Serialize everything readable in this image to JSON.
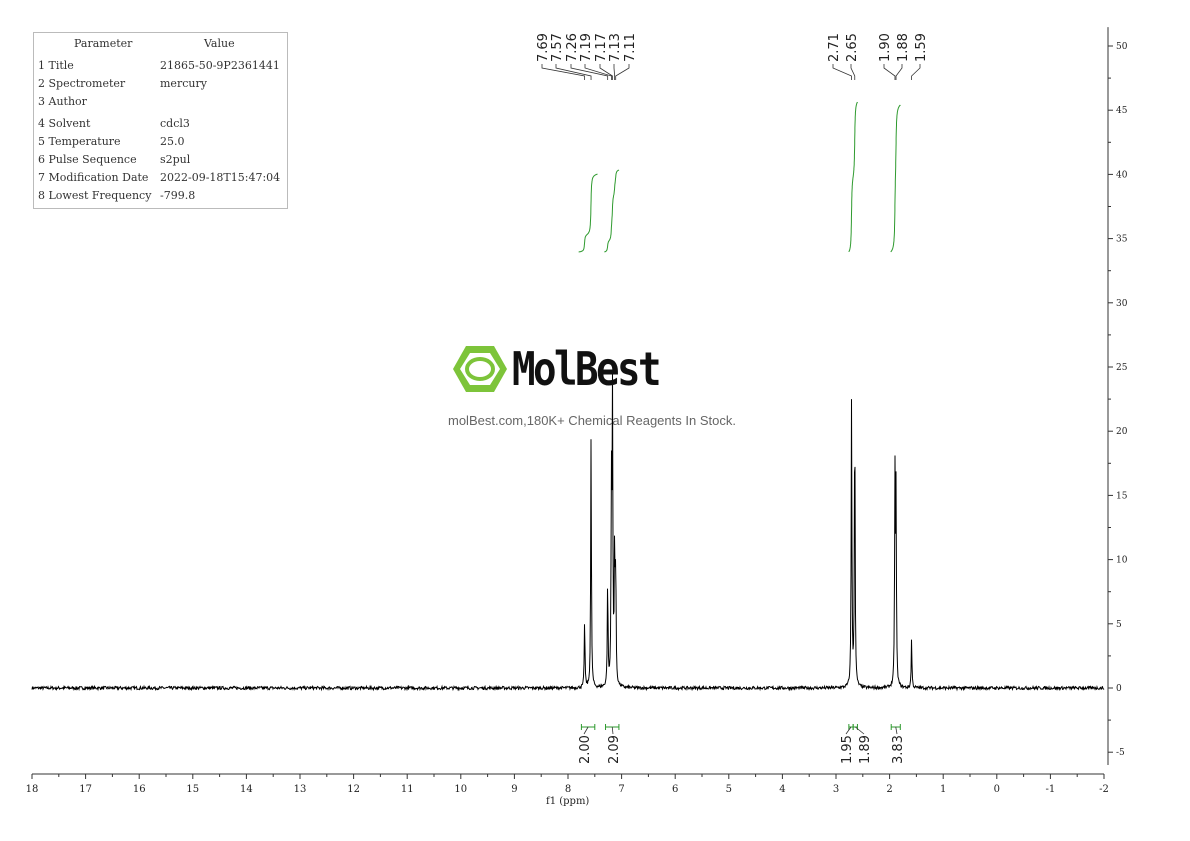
{
  "parameters": {
    "header": [
      "Parameter",
      "Value"
    ],
    "rows": [
      {
        "label": "1 Title",
        "value": "21865-50-9P2361441"
      },
      {
        "label": "2 Spectrometer",
        "value": "mercury"
      },
      {
        "label": "3 Author",
        "value": ""
      },
      {
        "label": "4 Solvent",
        "value": "cdcl3"
      },
      {
        "label": "5 Temperature",
        "value": "25.0"
      },
      {
        "label": "6 Pulse Sequence",
        "value": "s2pul"
      },
      {
        "label": "7 Modification Date",
        "value": "2022-09-18T15:47:04"
      },
      {
        "label": "8 Lowest Frequency",
        "value": "-799.8"
      }
    ]
  },
  "watermark": {
    "brand": "MolBest",
    "caption": "molBest.com,180K+ Chemical Reagents In Stock.",
    "color": "#7dc43a"
  },
  "chart_data": {
    "type": "line",
    "xlabel": "f1 (ppm)",
    "xlim": [
      18,
      -2
    ],
    "x_ticks": [
      "18",
      "17",
      "16",
      "15",
      "14",
      "13",
      "12",
      "11",
      "10",
      "9",
      "8",
      "7",
      "6",
      "5",
      "4",
      "3",
      "2",
      "1",
      "0",
      "-1",
      "-2"
    ],
    "ylim": [
      -6,
      51
    ],
    "y_ticks": [
      "-5",
      "0",
      "5",
      "10",
      "15",
      "20",
      "25",
      "30",
      "35",
      "40",
      "45",
      "50"
    ],
    "y_axis_position": "right",
    "line_color": "#000000",
    "integral_color": "#2e9a2e",
    "peaks": [
      {
        "ppm": 7.69,
        "intensity": 5.3
      },
      {
        "ppm": 7.57,
        "intensity": 19.5
      },
      {
        "ppm": 7.26,
        "intensity": 8.3
      },
      {
        "ppm": 7.19,
        "intensity": 15.3
      },
      {
        "ppm": 7.17,
        "intensity": 22.0
      },
      {
        "ppm": 7.13,
        "intensity": 10.6
      },
      {
        "ppm": 7.11,
        "intensity": 9.0
      },
      {
        "ppm": 2.71,
        "intensity": 22.4
      },
      {
        "ppm": 2.65,
        "intensity": 22.3
      },
      {
        "ppm": 1.9,
        "intensity": 16.2
      },
      {
        "ppm": 1.88,
        "intensity": 14.5
      },
      {
        "ppm": 1.59,
        "intensity": 3.8
      }
    ],
    "peak_labels": [
      "7.69",
      "7.57",
      "7.26",
      "7.19",
      "7.17",
      "7.13",
      "7.11",
      "2.71",
      "2.65",
      "1.90",
      "1.88",
      "1.59"
    ],
    "integrals": [
      {
        "from": 7.75,
        "to": 7.5,
        "value": "2.00"
      },
      {
        "from": 7.3,
        "to": 7.05,
        "value": "2.09"
      },
      {
        "from": 2.76,
        "to": 2.68,
        "value": "1.95"
      },
      {
        "from": 2.68,
        "to": 2.6,
        "value": "1.89"
      },
      {
        "from": 1.97,
        "to": 1.8,
        "value": "3.83"
      }
    ]
  }
}
